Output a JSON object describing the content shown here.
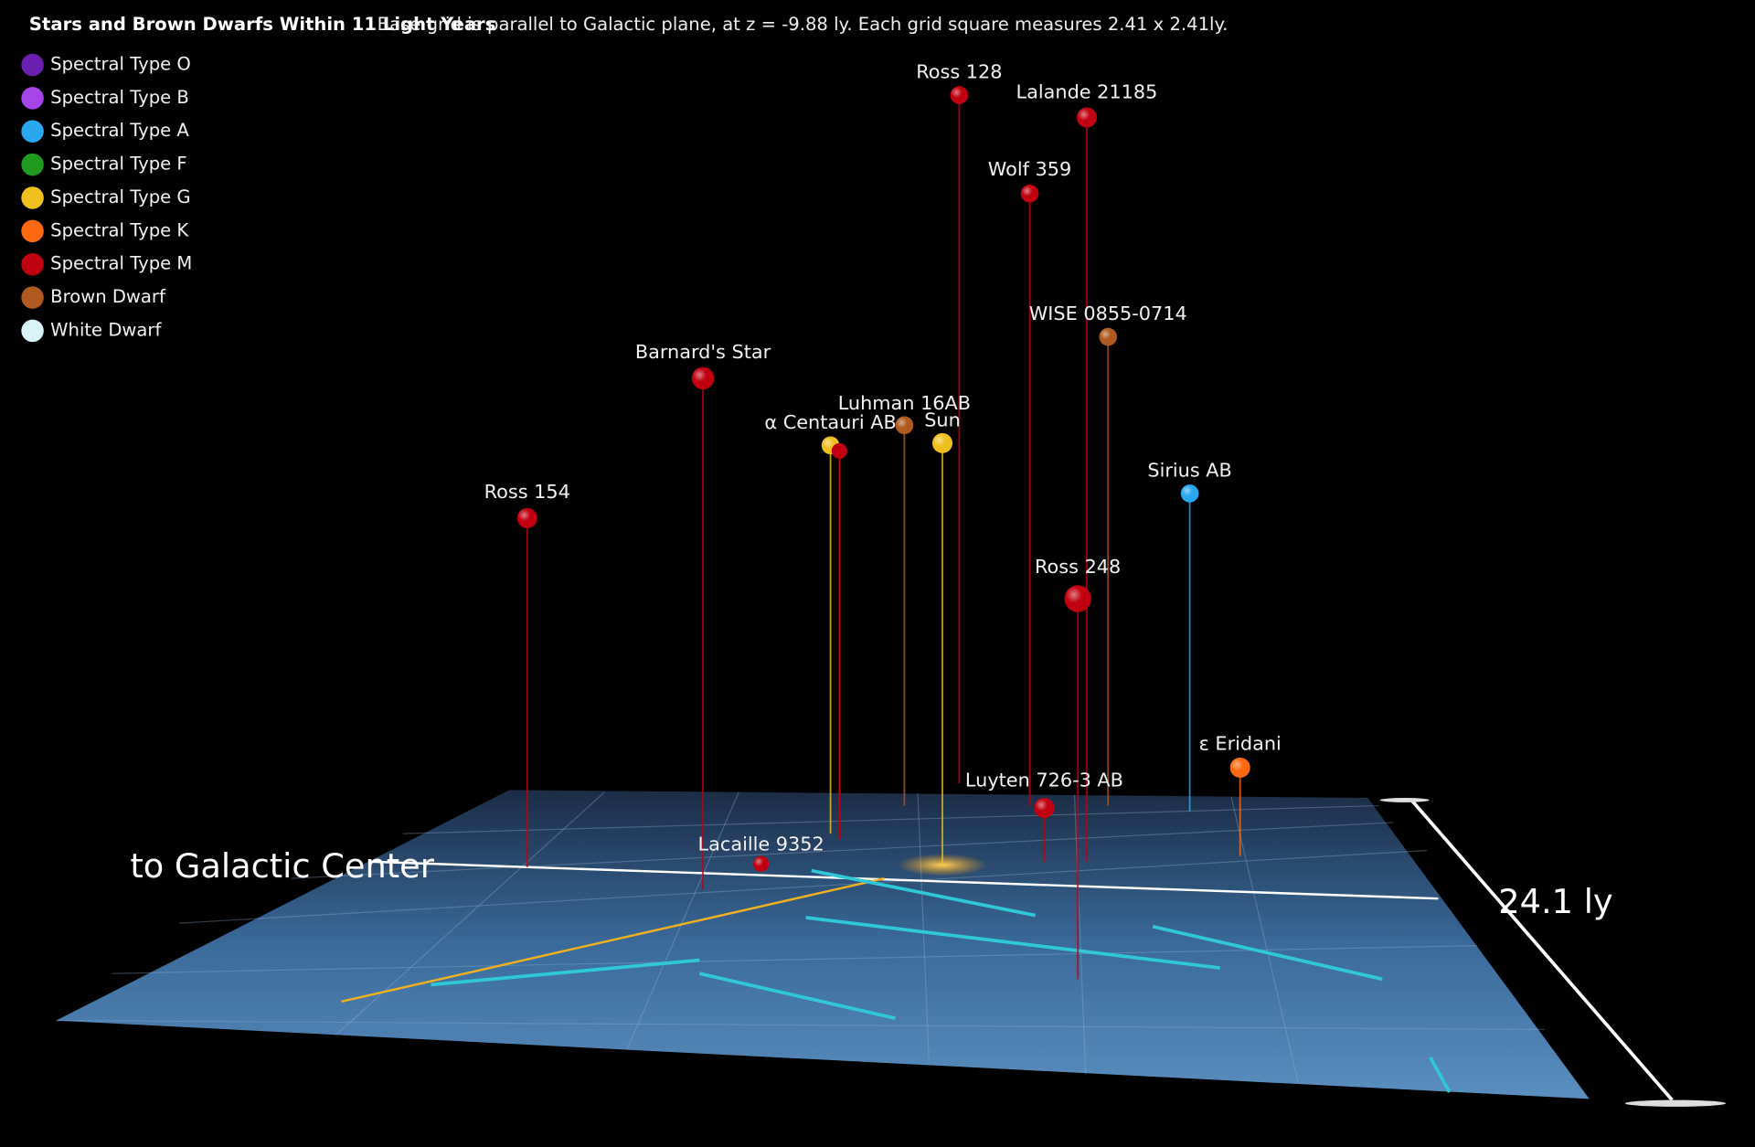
{
  "header": {
    "title": "Stars and Brown Dwarfs Within 11 Light Years",
    "note": "Base grid is parallel to Galactic plane, at z = -9.88 ly. Each grid square measures 2.41 x 2.41ly."
  },
  "legend": {
    "items": [
      "Spectral Type O",
      "Spectral Type B",
      "Spectral Type A",
      "Spectral Type F",
      "Spectral Type G",
      "Spectral Type K",
      "Spectral Type M",
      "Brown Dwarf",
      "White Dwarf"
    ]
  },
  "stars": [
    {
      "label": "Ross 128"
    },
    {
      "label": "Lalande 21185"
    },
    {
      "label": "Wolf 359"
    },
    {
      "label": "WISE 0855-0714"
    },
    {
      "label": "Barnard's Star"
    },
    {
      "label": "Luhman 16AB"
    },
    {
      "label": "α Centauri AB"
    },
    {
      "label": "Sun"
    },
    {
      "label": "Sirius AB"
    },
    {
      "label": "Ross 154"
    },
    {
      "label": "Ross 248"
    },
    {
      "label": "ε Eridani"
    },
    {
      "label": "Luyten 726-3 AB"
    },
    {
      "label": "Lacaille 9352"
    }
  ],
  "annotations": {
    "galactic_center": "to Galactic Center",
    "scale": "24.1 ly"
  }
}
